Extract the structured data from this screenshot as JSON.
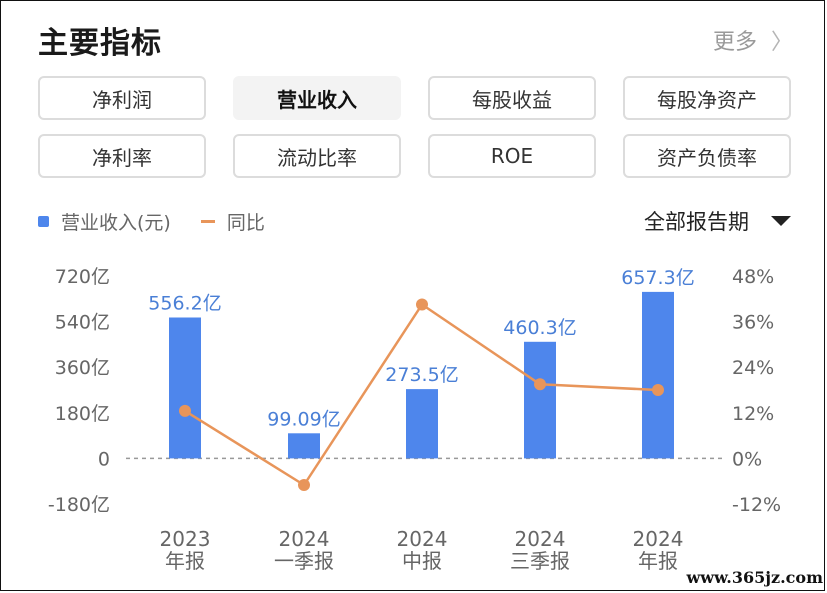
{
  "header": {
    "title": "主要指标",
    "more_label": "更多",
    "more_icon": "chevron-right-icon"
  },
  "tabs": [
    {
      "label": "净利润",
      "active": false
    },
    {
      "label": "营业收入",
      "active": true
    },
    {
      "label": "每股收益",
      "active": false
    },
    {
      "label": "每股净资产",
      "active": false
    },
    {
      "label": "净利率",
      "active": false
    },
    {
      "label": "流动比率",
      "active": false
    },
    {
      "label": "ROE",
      "active": false
    },
    {
      "label": "资产负债率",
      "active": false
    }
  ],
  "legend": {
    "bar_label": "营业收入(元)",
    "line_label": "同比"
  },
  "period_select": {
    "value": "全部报告期"
  },
  "watermark": "www.365jz.com",
  "colors": {
    "bar": "#4e86ec",
    "line": "#e8955a",
    "bar_label": "#4a7fd6",
    "axis_text": "#666666",
    "zero_line": "#999999"
  },
  "chart_data": {
    "type": "bar",
    "categories": [
      {
        "line1": "2023",
        "line2": "年报"
      },
      {
        "line1": "2024",
        "line2": "一季报"
      },
      {
        "line1": "2024",
        "line2": "中报"
      },
      {
        "line1": "2024",
        "line2": "三季报"
      },
      {
        "line1": "2024",
        "line2": "年报"
      }
    ],
    "series": [
      {
        "name": "营业收入(元)",
        "type": "bar",
        "axis": "left",
        "values": [
          556.2,
          99.09,
          273.5,
          460.3,
          657.3
        ],
        "labels": [
          "556.2亿",
          "99.09亿",
          "273.5亿",
          "460.3亿",
          "657.3亿"
        ]
      },
      {
        "name": "同比",
        "type": "line",
        "axis": "right",
        "values": [
          12.5,
          -7.0,
          40.5,
          19.5,
          18.0
        ]
      }
    ],
    "y_left": {
      "ylim": [
        -180,
        720
      ],
      "ticks": [
        720,
        540,
        360,
        180,
        0,
        -180
      ],
      "tick_labels": [
        "720亿",
        "540亿",
        "360亿",
        "180亿",
        "0",
        "-180亿"
      ]
    },
    "y_right": {
      "ylim": [
        -12,
        48
      ],
      "ticks": [
        48,
        36,
        24,
        12,
        0,
        -12
      ],
      "tick_labels": [
        "48%",
        "36%",
        "24%",
        "12%",
        "0%",
        "-12%"
      ]
    },
    "zero_line": "dashed",
    "grid": false
  }
}
